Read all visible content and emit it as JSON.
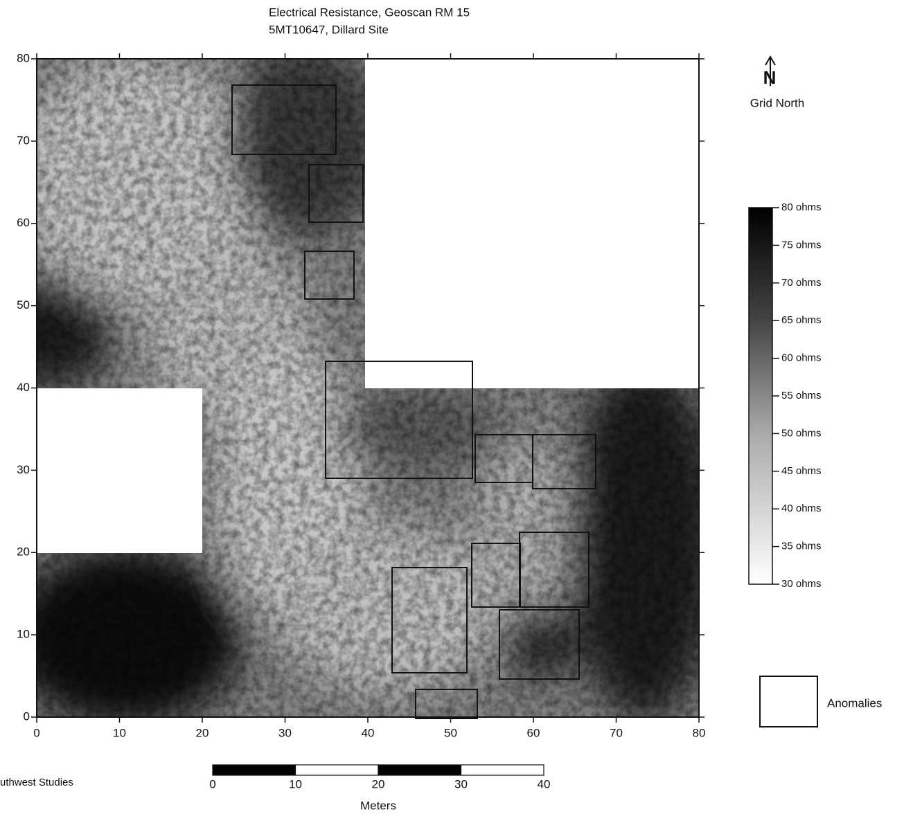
{
  "chart_data": {
    "type": "heatmap",
    "title": "Electrical Resistance, Geoscan RM 15",
    "subtitle": "5MT10647, Dillard Site",
    "xlim": [
      0,
      80
    ],
    "ylim": [
      0,
      80
    ],
    "xticks": [
      0,
      10,
      20,
      30,
      40,
      50,
      60,
      70,
      80
    ],
    "yticks": [
      0,
      10,
      20,
      30,
      40,
      50,
      60,
      70,
      80
    ],
    "colorbar": {
      "lim": [
        30,
        80
      ],
      "ticks": [
        {
          "value": 80,
          "label": "80 ohms"
        },
        {
          "value": 75,
          "label": "75 ohms"
        },
        {
          "value": 70,
          "label": "70 ohms"
        },
        {
          "value": 65,
          "label": "65 ohms"
        },
        {
          "value": 60,
          "label": "60 ohms"
        },
        {
          "value": 55,
          "label": "55 ohms"
        },
        {
          "value": 50,
          "label": "50 ohms"
        },
        {
          "value": 45,
          "label": "45 ohms"
        },
        {
          "value": 40,
          "label": "40 ohms"
        },
        {
          "value": 35,
          "label": "35 ohms"
        },
        {
          "value": 30,
          "label": "30 ohms"
        }
      ]
    },
    "scalebar": {
      "ticks": [
        0,
        10,
        20,
        30,
        40
      ],
      "label": "Meters"
    },
    "north_label": "Grid North",
    "legend": "Anomalies",
    "credit": "uthwest Studies"
  }
}
